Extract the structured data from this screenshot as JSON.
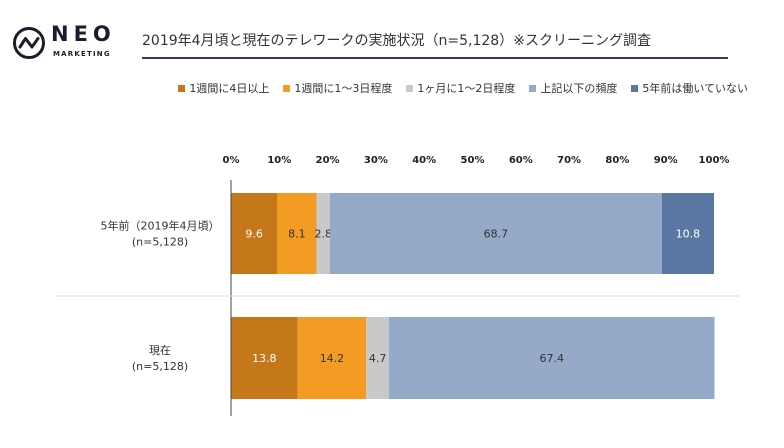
{
  "brand": {
    "name": "NEO",
    "sub": "MARKETING"
  },
  "chart_data": {
    "type": "bar",
    "orientation": "horizontal-stacked-100",
    "title": "2019年4月頃と現在のテレワークの実施状況（n=5,128）※スクリーニング調査",
    "categories": [
      "5年前（2019年4月頃）(n=5,128)",
      "現在(n=5,128)"
    ],
    "category_lines": [
      [
        "5年前（2019年4月頃）",
        "(n=5,128)"
      ],
      [
        "現在",
        "(n=5,128)"
      ]
    ],
    "series": [
      {
        "name": "1週間に4日以上",
        "values": [
          9.6,
          13.8
        ],
        "color": "#c5781a",
        "label_color": "#ffffff"
      },
      {
        "name": "1週間に1～3日程度",
        "values": [
          8.1,
          14.2
        ],
        "color": "#f29c24",
        "label_color": "#333333"
      },
      {
        "name": "1ヶ月に1～2日程度",
        "values": [
          2.8,
          4.7
        ],
        "color": "#c9c9c9",
        "label_color": "#333333"
      },
      {
        "name": "上記以下の頻度",
        "values": [
          68.7,
          67.4
        ],
        "color": "#94aac8",
        "label_color": "#333333"
      },
      {
        "name": "5年前は働いていない",
        "values": [
          10.8,
          null
        ],
        "color": "#5a77a3",
        "label_color": "#ffffff"
      }
    ],
    "value_labels": [
      [
        "9.6",
        "8.1",
        "2.8",
        "68.7",
        "10.8"
      ],
      [
        "13.8",
        "14.2",
        "4.7",
        "67.4",
        null
      ]
    ],
    "xticks": [
      "0%",
      "10%",
      "20%",
      "30%",
      "40%",
      "50%",
      "60%",
      "70%",
      "80%",
      "90%",
      "100%"
    ],
    "xlim": [
      0,
      100
    ],
    "legend_position": "top-right",
    "grid": false
  }
}
